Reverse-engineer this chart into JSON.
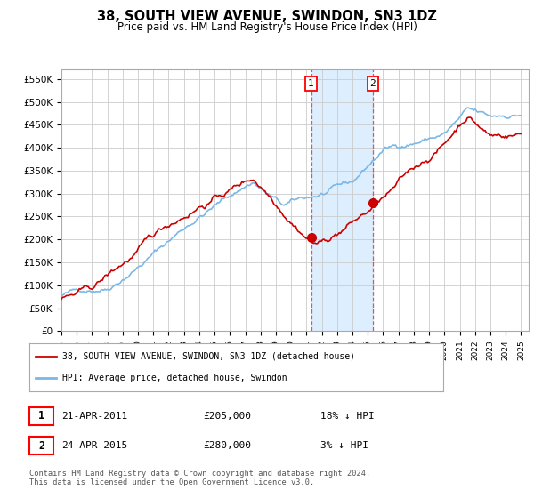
{
  "title": "38, SOUTH VIEW AVENUE, SWINDON, SN3 1DZ",
  "subtitle": "Price paid vs. HM Land Registry's House Price Index (HPI)",
  "ylim": [
    0,
    570000
  ],
  "yticks": [
    0,
    50000,
    100000,
    150000,
    200000,
    250000,
    300000,
    350000,
    400000,
    450000,
    500000,
    550000
  ],
  "ytick_labels": [
    "£0",
    "£50K",
    "£100K",
    "£150K",
    "£200K",
    "£250K",
    "£300K",
    "£350K",
    "£400K",
    "£450K",
    "£500K",
    "£550K"
  ],
  "hpi_color": "#7ab8e8",
  "property_color": "#cc0000",
  "shade_color": "#ddeeff",
  "transaction1_year": 2011.3,
  "transaction2_year": 2015.33,
  "transaction1_price": 205000,
  "transaction2_price": 280000,
  "legend_property": "38, SOUTH VIEW AVENUE, SWINDON, SN3 1DZ (detached house)",
  "legend_hpi": "HPI: Average price, detached house, Swindon",
  "table_row1_num": "1",
  "table_row1_date": "21-APR-2011",
  "table_row1_price": "£205,000",
  "table_row1_hpi": "18% ↓ HPI",
  "table_row2_num": "2",
  "table_row2_date": "24-APR-2015",
  "table_row2_price": "£280,000",
  "table_row2_hpi": "3% ↓ HPI",
  "footer": "Contains HM Land Registry data © Crown copyright and database right 2024.\nThis data is licensed under the Open Government Licence v3.0.",
  "background_color": "#ffffff",
  "grid_color": "#cccccc"
}
